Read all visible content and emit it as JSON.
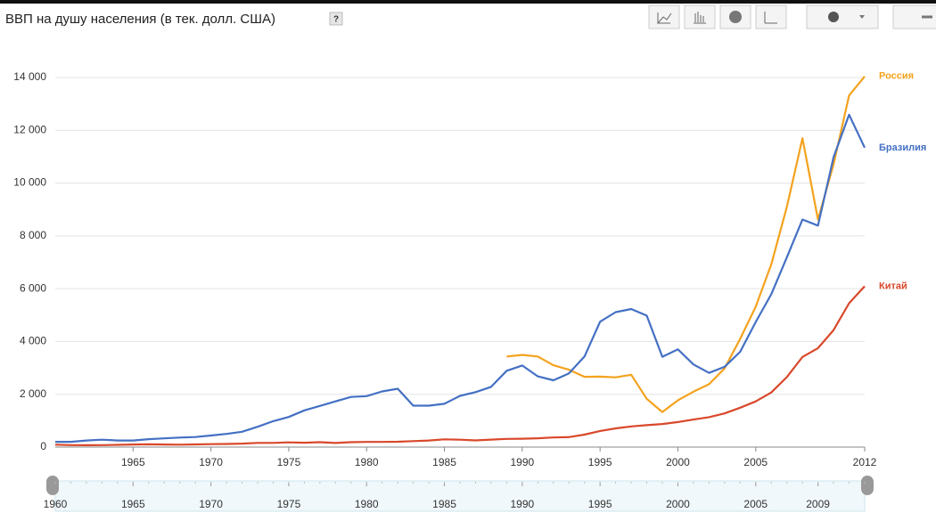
{
  "chart_data": {
    "type": "line",
    "title": "ВВП на душу населения (в тек. долл. США)",
    "help": "?",
    "x": [
      1960,
      1961,
      1962,
      1963,
      1964,
      1965,
      1966,
      1967,
      1968,
      1969,
      1970,
      1971,
      1972,
      1973,
      1974,
      1975,
      1976,
      1977,
      1978,
      1979,
      1980,
      1981,
      1982,
      1983,
      1984,
      1985,
      1986,
      1987,
      1988,
      1989,
      1990,
      1991,
      1992,
      1993,
      1994,
      1995,
      1996,
      1997,
      1998,
      1999,
      2000,
      2001,
      2002,
      2003,
      2004,
      2005,
      2006,
      2007,
      2008,
      2009,
      2010,
      2011,
      2012
    ],
    "series": [
      {
        "name": "Россия",
        "color": "#f4a21d",
        "values": [
          null,
          null,
          null,
          null,
          null,
          null,
          null,
          null,
          null,
          null,
          null,
          null,
          null,
          null,
          null,
          null,
          null,
          null,
          null,
          null,
          null,
          null,
          null,
          null,
          null,
          null,
          null,
          null,
          null,
          3430,
          3490,
          3430,
          3100,
          2930,
          2660,
          2670,
          2640,
          2740,
          1830,
          1330,
          1770,
          2100,
          2380,
          2980,
          4100,
          5320,
          6920,
          9100,
          11700,
          8620,
          10710,
          13320,
          14040
        ]
      },
      {
        "name": "Бразилия",
        "color": "#4470c4",
        "values": [
          200,
          200,
          250,
          280,
          250,
          250,
          300,
          330,
          360,
          380,
          440,
          500,
          580,
          770,
          980,
          1140,
          1390,
          1560,
          1730,
          1900,
          1930,
          2110,
          2210,
          1570,
          1570,
          1640,
          1940,
          2080,
          2280,
          2890,
          3090,
          2680,
          2530,
          2790,
          3430,
          4750,
          5110,
          5230,
          4980,
          3420,
          3700,
          3130,
          2810,
          3040,
          3610,
          4740,
          5790,
          7190,
          8620,
          8390,
          10980,
          12590,
          11340
        ]
      },
      {
        "name": "Китай",
        "color": "#d9482b",
        "values": [
          90,
          75,
          70,
          74,
          85,
          98,
          104,
          97,
          91,
          100,
          112,
          118,
          131,
          157,
          160,
          178,
          165,
          185,
          155,
          184,
          194,
          197,
          203,
          225,
          251,
          294,
          281,
          252,
          283,
          311,
          317,
          333,
          366,
          377,
          473,
          610,
          709,
          782,
          829,
          873,
          949,
          1042,
          1135,
          1274,
          1490,
          1731,
          2069,
          2651,
          3414,
          3749,
          4433,
          5447,
          6093
        ]
      }
    ],
    "xlim": [
      1960,
      2012
    ],
    "xticks": [
      1965,
      1970,
      1975,
      1980,
      1985,
      1990,
      1995,
      2000,
      2005,
      2012
    ],
    "ylim": [
      0,
      14000
    ],
    "yticks": [
      0,
      {
        "value": 2000,
        "label": "2 000"
      },
      {
        "value": 4000,
        "label": "4 000"
      },
      {
        "value": 6000,
        "label": "6 000"
      },
      {
        "value": 8000,
        "label": "8 000"
      },
      {
        "value": 10000,
        "label": "10 000"
      },
      {
        "value": 12000,
        "label": "12 000"
      },
      {
        "value": 14000,
        "label": "14 000"
      }
    ],
    "grid": true,
    "timeline_ticks": [
      1960,
      1965,
      1970,
      1975,
      1980,
      1985,
      1990,
      1995,
      2000,
      2005,
      2009
    ]
  }
}
